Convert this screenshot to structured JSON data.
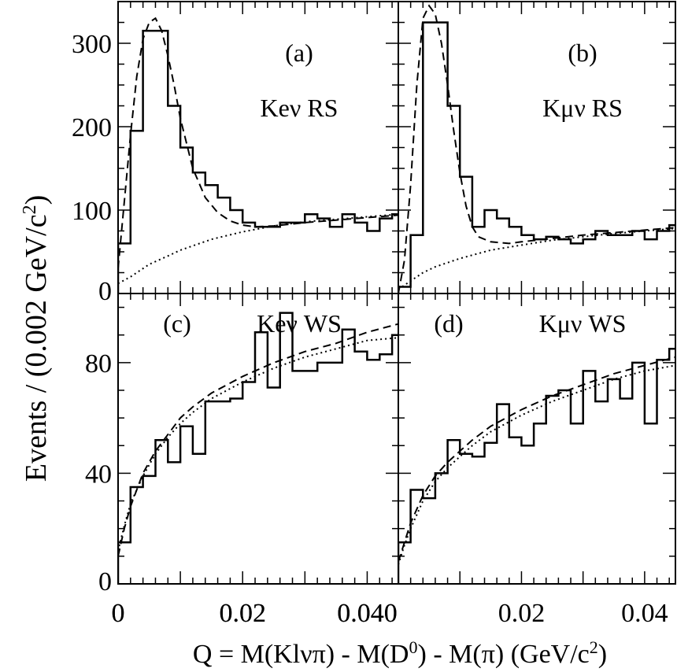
{
  "chart_data": {
    "type": "histogram-grid",
    "xlabel": "Q = M(Klνπ) - M(D⁰) - M(π) (GeV/c²)",
    "xlabel_parts": {
      "a": "Q = M(Kl",
      "nu": "ν",
      "pi": "π",
      "b": ") - M(D",
      "d0sup": "0",
      "c": ") - M(",
      "pi2": "π",
      "d": ") (GeV/c",
      "sup": "2",
      "e": ")"
    },
    "ylabel": "Events / (0.002 GeV/c²)",
    "ylabel_parts": {
      "main": "Events / (0.002 GeV/c",
      "sup": "2",
      "end": ")"
    },
    "xlim": [
      0,
      0.045
    ],
    "bin_width": 0.002,
    "panels": [
      {
        "id": "a",
        "tag": "(a)",
        "title": "Keν RS",
        "ylim": [
          0,
          350
        ],
        "yticks": [
          "0",
          "100",
          "200",
          "300"
        ],
        "ytick_values": [
          0,
          100,
          200,
          300
        ],
        "xticks": [
          "0",
          "0.02",
          "0.040"
        ],
        "xtick_values": [
          0,
          0.02,
          0.04
        ],
        "histogram": [
          60,
          195,
          315,
          315,
          225,
          175,
          145,
          130,
          115,
          100,
          85,
          80,
          80,
          85,
          85,
          95,
          90,
          80,
          95,
          85,
          75,
          90,
          95
        ],
        "fit_dashed": [
          [
            0,
            30
          ],
          [
            0.001,
            110
          ],
          [
            0.002,
            190
          ],
          [
            0.003,
            260
          ],
          [
            0.004,
            305
          ],
          [
            0.005,
            325
          ],
          [
            0.006,
            330
          ],
          [
            0.007,
            315
          ],
          [
            0.008,
            285
          ],
          [
            0.009,
            250
          ],
          [
            0.01,
            210
          ],
          [
            0.012,
            150
          ],
          [
            0.014,
            115
          ],
          [
            0.016,
            97
          ],
          [
            0.018,
            87
          ],
          [
            0.02,
            82
          ],
          [
            0.022,
            80
          ],
          [
            0.025,
            81
          ],
          [
            0.03,
            85
          ],
          [
            0.035,
            88
          ],
          [
            0.04,
            91
          ],
          [
            0.045,
            94
          ]
        ],
        "fit_signal_dashed": [
          [
            0.015,
            110
          ],
          [
            0.017,
            95
          ],
          [
            0.019,
            85
          ],
          [
            0.02,
            81
          ]
        ],
        "background_dotted": [
          [
            0,
            12
          ],
          [
            0.002,
            20
          ],
          [
            0.005,
            35
          ],
          [
            0.008,
            45
          ],
          [
            0.01,
            52
          ],
          [
            0.015,
            65
          ],
          [
            0.02,
            74
          ],
          [
            0.025,
            81
          ],
          [
            0.03,
            86
          ],
          [
            0.035,
            89
          ],
          [
            0.04,
            92
          ],
          [
            0.045,
            95
          ]
        ]
      },
      {
        "id": "b",
        "tag": "(b)",
        "title": "Kμν RS",
        "ylim": [
          0,
          350
        ],
        "yticks": [],
        "ytick_values": [
          0,
          100,
          200,
          300
        ],
        "xticks": [],
        "xtick_values": [
          0,
          0.02,
          0.04
        ],
        "histogram": [
          8,
          70,
          325,
          325,
          225,
          140,
          80,
          100,
          90,
          80,
          70,
          65,
          68,
          65,
          60,
          65,
          75,
          70,
          70,
          75,
          65,
          75,
          82
        ],
        "fit_dashed": [
          [
            0,
            0
          ],
          [
            0.001,
            40
          ],
          [
            0.002,
            130
          ],
          [
            0.003,
            250
          ],
          [
            0.004,
            330
          ],
          [
            0.005,
            345
          ],
          [
            0.006,
            335
          ],
          [
            0.007,
            300
          ],
          [
            0.008,
            250
          ],
          [
            0.009,
            195
          ],
          [
            0.01,
            145
          ],
          [
            0.011,
            105
          ],
          [
            0.012,
            80
          ],
          [
            0.013,
            68
          ],
          [
            0.015,
            62
          ],
          [
            0.018,
            60
          ],
          [
            0.02,
            62
          ],
          [
            0.025,
            66
          ],
          [
            0.03,
            70
          ],
          [
            0.035,
            73
          ],
          [
            0.04,
            76
          ],
          [
            0.045,
            79
          ]
        ],
        "fit_signal_dashed": [],
        "background_dotted": [
          [
            0,
            5
          ],
          [
            0.002,
            15
          ],
          [
            0.004,
            25
          ],
          [
            0.006,
            32
          ],
          [
            0.008,
            37
          ],
          [
            0.01,
            42
          ],
          [
            0.015,
            52
          ],
          [
            0.02,
            58
          ],
          [
            0.025,
            64
          ],
          [
            0.03,
            68
          ],
          [
            0.035,
            72
          ],
          [
            0.04,
            75
          ],
          [
            0.045,
            78
          ]
        ]
      },
      {
        "id": "c",
        "tag": "(c)",
        "title": "Keν WS",
        "ylim": [
          0,
          105
        ],
        "yticks": [
          "0",
          "40",
          "80"
        ],
        "ytick_values": [
          0,
          40,
          80
        ],
        "xticks": [
          "0",
          "0.02",
          "0.040"
        ],
        "xtick_values": [
          0,
          0.02,
          0.04
        ],
        "histogram": [
          15,
          35,
          39,
          52,
          44,
          57,
          47,
          66,
          66,
          67,
          73,
          91,
          71,
          98,
          77,
          77,
          80,
          80,
          92,
          84,
          81,
          83,
          90
        ],
        "fit_dashed": [
          [
            0,
            10
          ],
          [
            0.001,
            20
          ],
          [
            0.002,
            28
          ],
          [
            0.004,
            40
          ],
          [
            0.006,
            48
          ],
          [
            0.008,
            54
          ],
          [
            0.01,
            60
          ],
          [
            0.012,
            64
          ],
          [
            0.015,
            69
          ],
          [
            0.02,
            75
          ],
          [
            0.025,
            80
          ],
          [
            0.03,
            84
          ],
          [
            0.035,
            87
          ],
          [
            0.04,
            91
          ],
          [
            0.045,
            94
          ]
        ],
        "fit_signal_dashed": [],
        "background_dotted": [
          [
            0,
            12
          ],
          [
            0.001,
            21
          ],
          [
            0.002,
            29
          ],
          [
            0.004,
            39
          ],
          [
            0.006,
            47
          ],
          [
            0.008,
            53
          ],
          [
            0.01,
            58
          ],
          [
            0.012,
            62
          ],
          [
            0.015,
            67
          ],
          [
            0.02,
            73
          ],
          [
            0.025,
            78
          ],
          [
            0.03,
            82
          ],
          [
            0.035,
            85
          ],
          [
            0.04,
            88
          ],
          [
            0.045,
            89
          ]
        ]
      },
      {
        "id": "d",
        "tag": "(d)",
        "title": "Kμν WS",
        "ylim": [
          0,
          105
        ],
        "yticks": [],
        "ytick_values": [
          0,
          40,
          80
        ],
        "xticks": [
          "0.02",
          "0.04"
        ],
        "xtick_values": [
          0.02,
          0.04
        ],
        "histogram": [
          15,
          34,
          31,
          40,
          52,
          47,
          46,
          51,
          65,
          53,
          50,
          58,
          68,
          70,
          58,
          77,
          66,
          74,
          67,
          80,
          58,
          81,
          85
        ],
        "fit_dashed": [
          [
            0,
            8
          ],
          [
            0.001,
            15
          ],
          [
            0.002,
            22
          ],
          [
            0.004,
            32
          ],
          [
            0.006,
            39
          ],
          [
            0.008,
            44
          ],
          [
            0.01,
            48
          ],
          [
            0.012,
            52
          ],
          [
            0.015,
            57
          ],
          [
            0.02,
            63
          ],
          [
            0.025,
            68
          ],
          [
            0.03,
            72
          ],
          [
            0.035,
            76
          ],
          [
            0.04,
            79
          ],
          [
            0.045,
            82
          ]
        ],
        "fit_signal_dashed": [],
        "background_dotted": [
          [
            0,
            7
          ],
          [
            0.001,
            14
          ],
          [
            0.002,
            20
          ],
          [
            0.004,
            30
          ],
          [
            0.006,
            37
          ],
          [
            0.008,
            42
          ],
          [
            0.01,
            46
          ],
          [
            0.012,
            50
          ],
          [
            0.015,
            55
          ],
          [
            0.02,
            61
          ],
          [
            0.025,
            66
          ],
          [
            0.03,
            70
          ],
          [
            0.035,
            74
          ],
          [
            0.04,
            77
          ],
          [
            0.045,
            79
          ]
        ]
      }
    ]
  }
}
